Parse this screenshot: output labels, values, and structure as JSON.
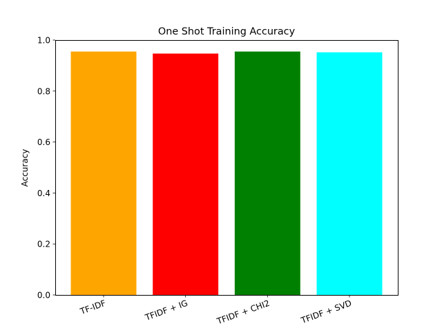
{
  "chart_data": {
    "type": "bar",
    "title": "One Shot Training Accuracy",
    "xlabel": "",
    "ylabel": "Accuracy",
    "categories": [
      "TF-IDF",
      "TFIDF + IG",
      "TFIDF + CHI2",
      "TFIDF + SVD"
    ],
    "values": [
      0.955,
      0.947,
      0.955,
      0.952
    ],
    "colors": [
      "#ffa500",
      "#ff0000",
      "#008000",
      "#00ffff"
    ],
    "ylim": [
      0,
      1
    ],
    "yticks": [
      0.0,
      0.2,
      0.4,
      0.6,
      0.8,
      1.0
    ],
    "ytick_labels": [
      "0.0",
      "0.2",
      "0.4",
      "0.6",
      "0.8",
      "1.0"
    ],
    "grid": false,
    "legend": "none"
  }
}
